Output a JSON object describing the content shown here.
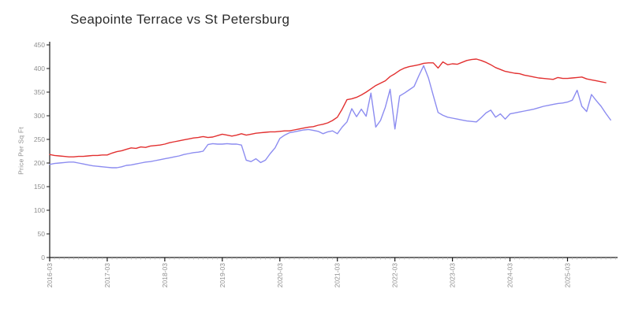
{
  "page": {
    "background": "#ffffff"
  },
  "chart_data": {
    "type": "line",
    "title": "Seapointe Terrace vs St Petersburg",
    "xlabel": "",
    "ylabel": "Price Per Sq Ft",
    "ylim": [
      0,
      450
    ],
    "y_ticks": [
      0,
      50,
      100,
      150,
      200,
      250,
      300,
      350,
      400,
      450
    ],
    "x_tick_labels": [
      "2016-03",
      "2017-03",
      "2018-03",
      "2019-03",
      "2020-03",
      "2021-03",
      "2022-03",
      "2023-03",
      "2024-03",
      "2025-03"
    ],
    "x_start": "2016-03",
    "x_interval": "monthly",
    "grid": false,
    "legend_position": "none",
    "colors": {
      "axis": "#1a1a1a",
      "tick_label": "#8f8f8f",
      "minor_tick": "#b5b5b5"
    },
    "series": [
      {
        "name": "Seapointe Terrace",
        "color": "#8c8cf0",
        "values": [
          197,
          199,
          200,
          201,
          202,
          202,
          200,
          198,
          196,
          194,
          193,
          192,
          191,
          190,
          190,
          192,
          195,
          196,
          198,
          200,
          202,
          203,
          205,
          207,
          209,
          211,
          213,
          215,
          218,
          220,
          222,
          223,
          225,
          239,
          241,
          240,
          240,
          241,
          240,
          240,
          238,
          206,
          203,
          209,
          201,
          206,
          220,
          232,
          252,
          259,
          264,
          266,
          268,
          270,
          271,
          269,
          267,
          262,
          266,
          268,
          262,
          276,
          287,
          315,
          298,
          314,
          299,
          348,
          276,
          290,
          318,
          356,
          272,
          342,
          348,
          355,
          362,
          385,
          406,
          380,
          343,
          307,
          301,
          297,
          295,
          293,
          291,
          289,
          288,
          287,
          296,
          306,
          312,
          297,
          304,
          293,
          304,
          306,
          308,
          310,
          312,
          314,
          317,
          320,
          322,
          324,
          326,
          327,
          329,
          333,
          354,
          320,
          309,
          345,
          332,
          320,
          305,
          291
        ]
      },
      {
        "name": "St Petersburg",
        "color": "#e23030",
        "values": [
          218,
          216,
          215,
          214,
          213,
          213,
          214,
          214,
          215,
          216,
          216,
          217,
          217,
          221,
          224,
          226,
          229,
          232,
          231,
          234,
          233,
          236,
          237,
          238,
          240,
          243,
          245,
          247,
          249,
          251,
          253,
          254,
          256,
          254,
          255,
          258,
          261,
          259,
          257,
          259,
          262,
          259,
          261,
          263,
          264,
          265,
          266,
          266,
          267,
          268,
          268,
          270,
          272,
          274,
          276,
          277,
          280,
          282,
          285,
          290,
          297,
          314,
          334,
          336,
          339,
          344,
          350,
          357,
          364,
          369,
          374,
          383,
          389,
          396,
          401,
          404,
          406,
          408,
          411,
          412,
          412,
          401,
          414,
          408,
          410,
          409,
          413,
          417,
          419,
          420,
          417,
          413,
          408,
          402,
          398,
          394,
          392,
          390,
          389,
          386,
          384,
          382,
          380,
          379,
          378,
          377,
          381,
          379,
          379,
          380,
          381,
          382,
          378,
          376,
          374,
          372,
          370,
          null
        ]
      }
    ]
  }
}
